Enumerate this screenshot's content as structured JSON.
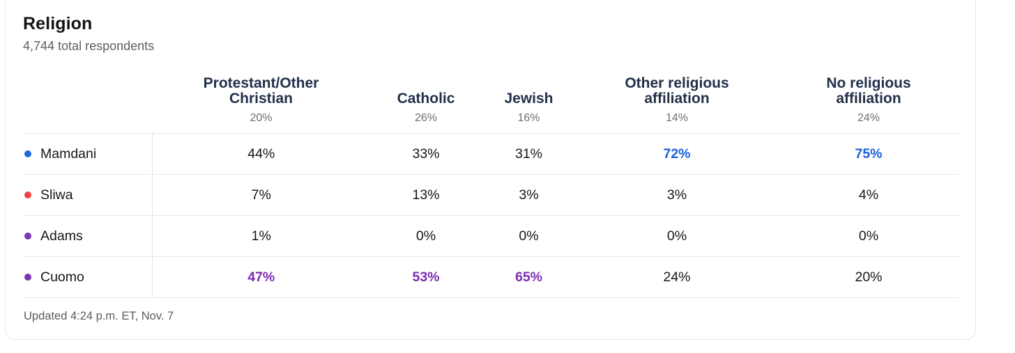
{
  "colors": {
    "accent_blue": "#1a5fd9",
    "accent_purple": "#7c2db3",
    "dot_blue": "#2268e0",
    "dot_red": "#f04343",
    "dot_purple": "#7d34b5",
    "header_navy": "#22304a"
  },
  "header": {
    "title": "Religion",
    "subtitle": "4,744 total respondents"
  },
  "table": {
    "columns": [
      {
        "label": "Protestant/Other Christian",
        "share": "20%"
      },
      {
        "label": "Catholic",
        "share": "26%"
      },
      {
        "label": "Jewish",
        "share": "16%"
      },
      {
        "label": "Other religious affiliation",
        "share": "14%"
      },
      {
        "label": "No religious affiliation",
        "share": "24%"
      }
    ],
    "rows": [
      {
        "candidate": "Mamdani",
        "dot_color": "#2268e0",
        "values": [
          {
            "text": "44%"
          },
          {
            "text": "33%"
          },
          {
            "text": "31%"
          },
          {
            "text": "72%",
            "emphasis": "#1a5fd9"
          },
          {
            "text": "75%",
            "emphasis": "#1a5fd9"
          }
        ]
      },
      {
        "candidate": "Sliwa",
        "dot_color": "#f04343",
        "values": [
          {
            "text": "7%"
          },
          {
            "text": "13%"
          },
          {
            "text": "3%"
          },
          {
            "text": "3%"
          },
          {
            "text": "4%"
          }
        ]
      },
      {
        "candidate": "Adams",
        "dot_color": "#7d34b5",
        "values": [
          {
            "text": "1%"
          },
          {
            "text": "0%"
          },
          {
            "text": "0%"
          },
          {
            "text": "0%"
          },
          {
            "text": "0%"
          }
        ]
      },
      {
        "candidate": "Cuomo",
        "dot_color": "#7d34b5",
        "values": [
          {
            "text": "47%",
            "emphasis": "#7c2db3"
          },
          {
            "text": "53%",
            "emphasis": "#7c2db3"
          },
          {
            "text": "65%",
            "emphasis": "#7c2db3"
          },
          {
            "text": "24%"
          },
          {
            "text": "20%"
          }
        ]
      }
    ]
  },
  "footer": {
    "updated": "Updated 4:24 p.m. ET, Nov. 7"
  },
  "chart_data": {
    "type": "table",
    "title": "Religion",
    "subtitle": "4,744 total respondents",
    "total_respondents": 4744,
    "categories": [
      "Protestant/Other Christian",
      "Catholic",
      "Jewish",
      "Other religious affiliation",
      "No religious affiliation"
    ],
    "category_shares_pct": [
      20,
      26,
      16,
      14,
      24
    ],
    "series": [
      {
        "name": "Mamdani",
        "color": "#2268e0",
        "values": [
          44,
          33,
          31,
          72,
          75
        ]
      },
      {
        "name": "Sliwa",
        "color": "#f04343",
        "values": [
          7,
          13,
          3,
          3,
          4
        ]
      },
      {
        "name": "Adams",
        "color": "#7d34b5",
        "values": [
          1,
          0,
          0,
          0,
          0
        ]
      },
      {
        "name": "Cuomo",
        "color": "#7d34b5",
        "values": [
          47,
          53,
          65,
          24,
          20
        ]
      }
    ],
    "highlighted_cells": [
      {
        "series": "Mamdani",
        "category": "Other religious affiliation",
        "value": 72
      },
      {
        "series": "Mamdani",
        "category": "No religious affiliation",
        "value": 75
      },
      {
        "series": "Cuomo",
        "category": "Protestant/Other Christian",
        "value": 47
      },
      {
        "series": "Cuomo",
        "category": "Catholic",
        "value": 53
      },
      {
        "series": "Cuomo",
        "category": "Jewish",
        "value": 65
      }
    ],
    "footnote": "Updated 4:24 p.m. ET, Nov. 7"
  }
}
